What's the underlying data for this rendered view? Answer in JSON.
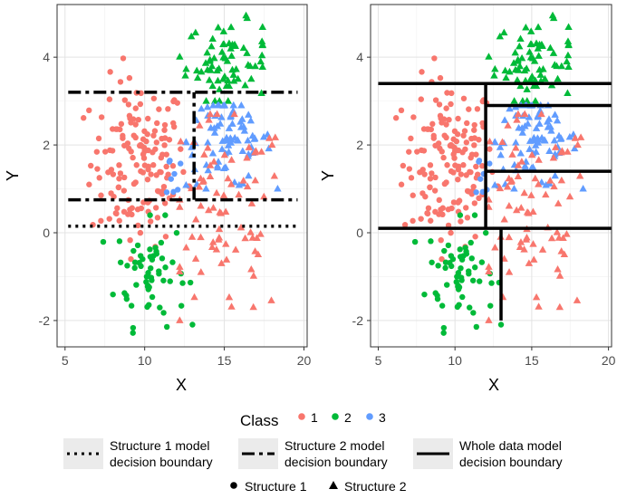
{
  "chart_data": [
    {
      "type": "scatter",
      "panel": "left",
      "xlabel": "X",
      "ylabel": "Y",
      "xlim": [
        4.5,
        20.2
      ],
      "ylim": [
        -2.6,
        5.2
      ],
      "xticks": [
        5,
        10,
        15,
        20
      ],
      "yticks": [
        -2,
        0,
        2,
        4
      ],
      "grid": true,
      "boundaries": [
        {
          "type": "Structure 1 model decision boundary",
          "style": "dotted",
          "segments": [
            [
              5.2,
              0.15,
              19.6,
              0.15
            ]
          ]
        },
        {
          "type": "Structure 2 model decision boundary",
          "style": "dashed",
          "segments": [
            [
              5.2,
              3.2,
              19.6,
              3.2
            ],
            [
              5.2,
              0.75,
              19.6,
              0.75
            ],
            [
              13.1,
              0.75,
              13.1,
              3.2
            ]
          ]
        }
      ]
    },
    {
      "type": "scatter",
      "panel": "right",
      "xlabel": "X",
      "ylabel": "Y",
      "xlim": [
        4.5,
        20.2
      ],
      "ylim": [
        -2.6,
        5.2
      ],
      "xticks": [
        5,
        10,
        15,
        20
      ],
      "yticks": [
        -2,
        0,
        2,
        4
      ],
      "grid": true,
      "boundaries": [
        {
          "type": "Whole data model decision boundary",
          "style": "solid",
          "segments": [
            [
              5.0,
              3.4,
              20.2,
              3.4
            ],
            [
              5.0,
              0.1,
              20.2,
              0.1
            ],
            [
              12.0,
              0.1,
              12.0,
              3.4
            ],
            [
              12.0,
              2.9,
              20.2,
              2.9
            ],
            [
              12.0,
              1.4,
              20.2,
              1.4
            ],
            [
              13.0,
              -2.0,
              13.0,
              0.1
            ]
          ]
        }
      ]
    }
  ],
  "legend": {
    "class_title": "Class",
    "classes": [
      {
        "label": "1",
        "color": "#F8766D"
      },
      {
        "label": "2",
        "color": "#00BA38"
      },
      {
        "label": "3",
        "color": "#619CFF"
      }
    ],
    "lines": [
      {
        "label_line1": "Structure 1 model",
        "label_line2": "decision boundary",
        "style": "dotted"
      },
      {
        "label_line1": "Structure 2 model",
        "label_line2": "decision boundary",
        "style": "dashed"
      },
      {
        "label_line1": "Whole data model",
        "label_line2": "decision boundary",
        "style": "solid"
      }
    ],
    "shapes": [
      {
        "label": "Structure 1",
        "shape": "circle"
      },
      {
        "label": "Structure 2",
        "shape": "triangle"
      }
    ]
  }
}
